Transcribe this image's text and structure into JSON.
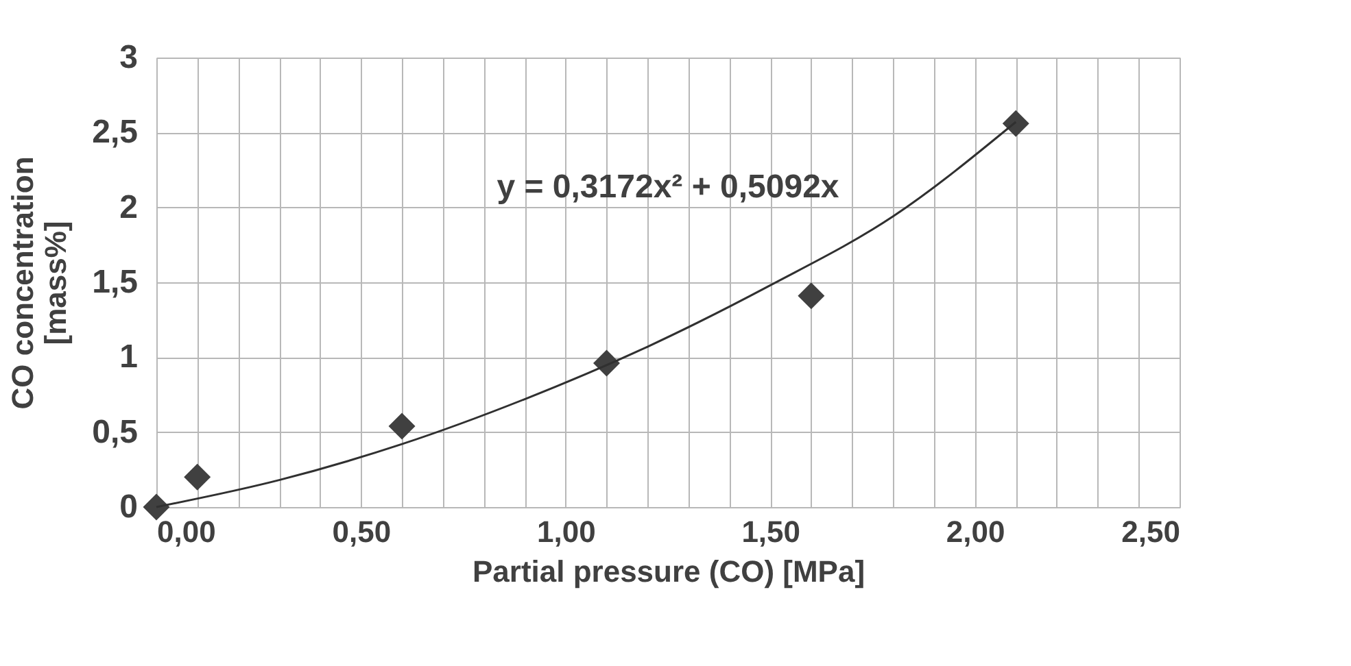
{
  "chart_data": {
    "type": "scatter",
    "xlabel": "Partial pressure (CO) [MPa]",
    "ylabel": "CO concentration\n[mass%]",
    "xlim": [
      0,
      2.5
    ],
    "ylim": [
      0,
      3
    ],
    "xticks": [
      {
        "value": 0,
        "label": "0,00"
      },
      {
        "value": 0.1,
        "label": null
      },
      {
        "value": 0.2,
        "label": null
      },
      {
        "value": 0.3,
        "label": null
      },
      {
        "value": 0.4,
        "label": null
      },
      {
        "value": 0.5,
        "label": "0,50"
      },
      {
        "value": 0.6,
        "label": null
      },
      {
        "value": 0.7,
        "label": null
      },
      {
        "value": 0.8,
        "label": null
      },
      {
        "value": 0.9,
        "label": null
      },
      {
        "value": 1.0,
        "label": "1,00"
      },
      {
        "value": 1.1,
        "label": null
      },
      {
        "value": 1.2,
        "label": null
      },
      {
        "value": 1.3,
        "label": null
      },
      {
        "value": 1.4,
        "label": null
      },
      {
        "value": 1.5,
        "label": "1,50"
      },
      {
        "value": 1.6,
        "label": null
      },
      {
        "value": 1.7,
        "label": null
      },
      {
        "value": 1.8,
        "label": null
      },
      {
        "value": 1.9,
        "label": null
      },
      {
        "value": 2.0,
        "label": "2,00"
      },
      {
        "value": 2.1,
        "label": null
      },
      {
        "value": 2.2,
        "label": null
      },
      {
        "value": 2.3,
        "label": null
      },
      {
        "value": 2.4,
        "label": null
      },
      {
        "value": 2.5,
        "label": "2,50"
      }
    ],
    "yticks": [
      0,
      {
        "value": 0.5,
        "label": "0,5"
      },
      1,
      {
        "value": 1.5,
        "label": "1,5"
      },
      2,
      {
        "value": 2.5,
        "label": "2,5"
      },
      3
    ],
    "grid": true,
    "series": [
      {
        "color": "#404040",
        "marker": "diamond",
        "x": [
          0,
          0.1,
          0.6,
          1.1,
          1.6,
          2.1
        ],
        "values": [
          0,
          0.2,
          0.54,
          0.96,
          1.41,
          2.56
        ]
      },
      {
        "type": "line",
        "color": "#303030",
        "line_style": "solid",
        "x": [
          0,
          0.3,
          0.6,
          0.9,
          1.2,
          1.5,
          1.8,
          2.1
        ],
        "values": [
          0,
          0.18,
          0.42,
          0.72,
          1.07,
          1.48,
          1.94,
          2.57
        ]
      }
    ],
    "annotations": [
      "y = 0,3172x² + 0,5092x"
    ]
  }
}
